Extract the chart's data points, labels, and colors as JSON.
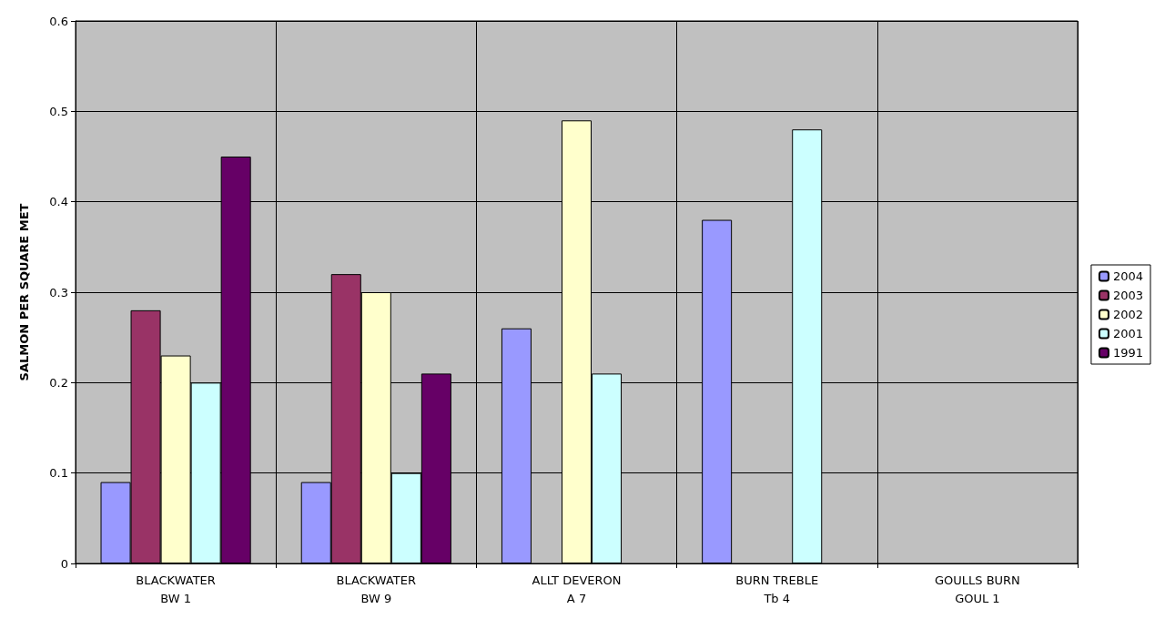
{
  "chart_data": {
    "type": "bar",
    "ylabel": "SALMON PER SQUARE MET",
    "categories": [
      "BLACKWATER\nBW 1",
      "BLACKWATER\nBW 9",
      "ALLT DEVERON\nA 7",
      "BURN TREBLE\nTb 4",
      "GOULLS BURN\nGOUL 1"
    ],
    "series": [
      {
        "name": "2004",
        "color": "#9999ff",
        "values": [
          0.09,
          0.09,
          0.26,
          0.38,
          null
        ]
      },
      {
        "name": "2003",
        "color": "#993366",
        "values": [
          0.28,
          0.32,
          null,
          null,
          null
        ]
      },
      {
        "name": "2002",
        "color": "#ffffcc",
        "values": [
          0.23,
          0.3,
          0.49,
          null,
          null
        ]
      },
      {
        "name": "2001",
        "color": "#ccffff",
        "values": [
          0.2,
          0.1,
          0.21,
          0.48,
          null
        ]
      },
      {
        "name": "1991",
        "color": "#660066",
        "values": [
          0.45,
          0.21,
          null,
          null,
          null
        ]
      }
    ],
    "ylim": [
      0,
      0.6
    ],
    "yticks": [
      0,
      0.1,
      0.2,
      0.3,
      0.4,
      0.5,
      0.6
    ],
    "grid": true,
    "legend": "right"
  }
}
